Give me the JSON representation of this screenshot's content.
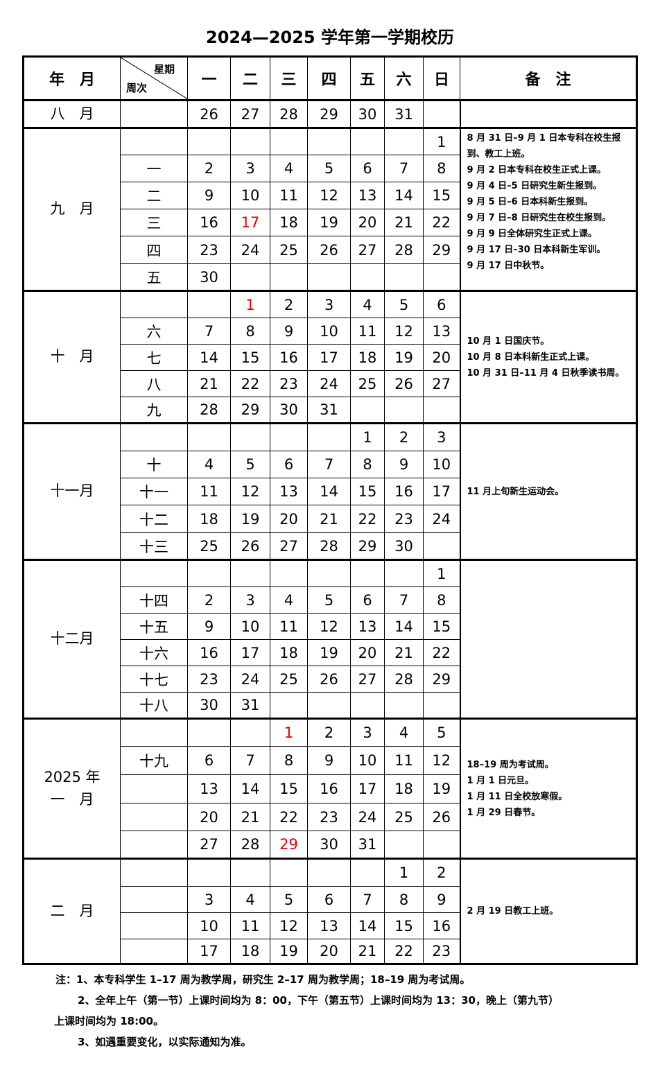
{
  "title": "2024—2025 学年第一学期校历",
  "header": {
    "month": "年　月",
    "weekday_label": "星期",
    "week_label": "周次",
    "days": [
      "一",
      "二",
      "三",
      "四",
      "五",
      "六",
      "日"
    ],
    "notes": "备　注"
  },
  "red_color": "#e00000",
  "months": [
    {
      "label": "八　月",
      "notes": [],
      "rows": [
        {
          "week": "",
          "days": [
            "26",
            "27",
            "28",
            "29",
            "30",
            "31",
            ""
          ]
        }
      ],
      "red": []
    },
    {
      "label": "九　月",
      "notes": [
        "8 月 31 日–9 月 1 日本专科在校生报到、教工上班。",
        "9 月 2 日本专科在校生正式上课。",
        "9 月 4 日–5 日研究生新生报到。",
        "9 月 5 日–6 日本科新生报到。",
        "9 月 7 日–8 日研究生在校生报到。",
        "9 月 9 日全体研究生正式上课。",
        "9 月 17 日–30 日本科新生军训。",
        "9 月 17 日中秋节。"
      ],
      "rows": [
        {
          "week": "",
          "days": [
            "",
            "",
            "",
            "",
            "",
            "",
            "1"
          ]
        },
        {
          "week": "一",
          "days": [
            "2",
            "3",
            "4",
            "5",
            "6",
            "7",
            "8"
          ]
        },
        {
          "week": "二",
          "days": [
            "9",
            "10",
            "11",
            "12",
            "13",
            "14",
            "15"
          ]
        },
        {
          "week": "三",
          "days": [
            "16",
            "17",
            "18",
            "19",
            "20",
            "21",
            "22"
          ]
        },
        {
          "week": "四",
          "days": [
            "23",
            "24",
            "25",
            "26",
            "27",
            "28",
            "29"
          ]
        },
        {
          "week": "五",
          "days": [
            "30",
            "",
            "",
            "",
            "",
            "",
            ""
          ]
        }
      ],
      "red": [
        "17"
      ]
    },
    {
      "label": "十　月",
      "notes": [
        "10 月 1 日国庆节。",
        "10 月 8 日本科新生正式上课。",
        "10 月 31 日–11 月 4 日秋季读书周。"
      ],
      "rows": [
        {
          "week": "",
          "days": [
            "",
            "1",
            "2",
            "3",
            "4",
            "5",
            "6"
          ]
        },
        {
          "week": "六",
          "days": [
            "7",
            "8",
            "9",
            "10",
            "11",
            "12",
            "13"
          ]
        },
        {
          "week": "七",
          "days": [
            "14",
            "15",
            "16",
            "17",
            "18",
            "19",
            "20"
          ]
        },
        {
          "week": "八",
          "days": [
            "21",
            "22",
            "23",
            "24",
            "25",
            "26",
            "27"
          ]
        },
        {
          "week": "九",
          "days": [
            "28",
            "29",
            "30",
            "31",
            "",
            "",
            ""
          ]
        }
      ],
      "red": [
        "1"
      ]
    },
    {
      "label": "十一月",
      "notes": [
        "11 月上旬新生运动会。"
      ],
      "rows": [
        {
          "week": "",
          "days": [
            "",
            "",
            "",
            "",
            "1",
            "2",
            "3"
          ]
        },
        {
          "week": "十",
          "days": [
            "4",
            "5",
            "6",
            "7",
            "8",
            "9",
            "10"
          ]
        },
        {
          "week": "十一",
          "days": [
            "11",
            "12",
            "13",
            "14",
            "15",
            "16",
            "17"
          ]
        },
        {
          "week": "十二",
          "days": [
            "18",
            "19",
            "20",
            "21",
            "22",
            "23",
            "24"
          ]
        },
        {
          "week": "十三",
          "days": [
            "25",
            "26",
            "27",
            "28",
            "29",
            "30",
            ""
          ]
        }
      ],
      "red": []
    },
    {
      "label": "十二月",
      "notes": [],
      "rows": [
        {
          "week": "",
          "days": [
            "",
            "",
            "",
            "",
            "",
            "",
            "1"
          ]
        },
        {
          "week": "十四",
          "days": [
            "2",
            "3",
            "4",
            "5",
            "6",
            "7",
            "8"
          ]
        },
        {
          "week": "十五",
          "days": [
            "9",
            "10",
            "11",
            "12",
            "13",
            "14",
            "15"
          ]
        },
        {
          "week": "十六",
          "days": [
            "16",
            "17",
            "18",
            "19",
            "20",
            "21",
            "22"
          ]
        },
        {
          "week": "十七",
          "days": [
            "23",
            "24",
            "25",
            "26",
            "27",
            "28",
            "29"
          ]
        },
        {
          "week": "十八",
          "days": [
            "30",
            "31",
            "",
            "",
            "",
            "",
            ""
          ]
        }
      ],
      "red": []
    },
    {
      "label": "2025 年\n一　月",
      "notes": [
        "18–19 周为考试周。",
        "1 月 1 日元旦。",
        "1 月 11 日全校放寒假。",
        "1 月 29 日春节。"
      ],
      "rows": [
        {
          "week": "",
          "days": [
            "",
            "",
            "1",
            "2",
            "3",
            "4",
            "5"
          ]
        },
        {
          "week": "十九",
          "days": [
            "6",
            "7",
            "8",
            "9",
            "10",
            "11",
            "12"
          ]
        },
        {
          "week": "",
          "days": [
            "13",
            "14",
            "15",
            "16",
            "17",
            "18",
            "19"
          ]
        },
        {
          "week": "",
          "days": [
            "20",
            "21",
            "22",
            "23",
            "24",
            "25",
            "26"
          ]
        },
        {
          "week": "",
          "days": [
            "27",
            "28",
            "29",
            "30",
            "31",
            "",
            ""
          ]
        }
      ],
      "red": [
        "1",
        "29"
      ]
    },
    {
      "label": "二　月",
      "notes": [
        "2 月 19 日教工上班。"
      ],
      "rows": [
        {
          "week": "",
          "days": [
            "",
            "",
            "",
            "",
            "",
            "1",
            "2"
          ]
        },
        {
          "week": "",
          "days": [
            "3",
            "4",
            "5",
            "6",
            "7",
            "8",
            "9"
          ]
        },
        {
          "week": "",
          "days": [
            "10",
            "11",
            "12",
            "13",
            "14",
            "15",
            "16"
          ]
        },
        {
          "week": "",
          "days": [
            "17",
            "18",
            "19",
            "20",
            "21",
            "22",
            "23"
          ]
        }
      ],
      "red": []
    }
  ],
  "footnotes": [
    "注：1、本专科学生 1–17 周为教学周，研究生 2–17 周为教学周；18–19 周为考试周。",
    "2、全年上午（第一节）上课时间均为 8：00，下午（第五节）上课时间均为 13：30，晚上（第九节）",
    "上课时间均为 18:00。",
    "3、如遇重要变化，以实际通知为准。"
  ]
}
